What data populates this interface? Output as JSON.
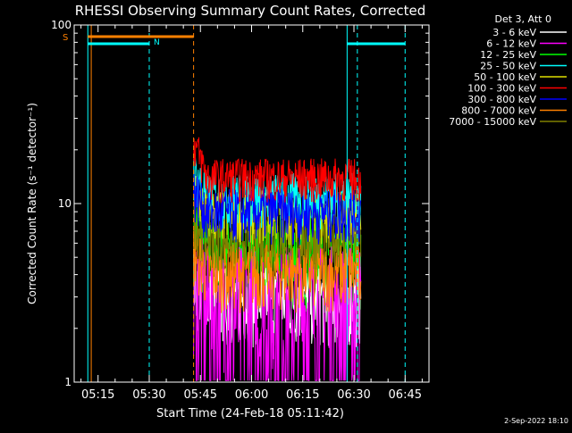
{
  "chart_data": {
    "type": "line",
    "title": "RHESSI Observing Summary Count Rates, Corrected",
    "xlabel": "Start Time (24-Feb-18 05:11:42)",
    "ylabel": "Corrected Count Rate (s⁻¹ detector⁻¹)",
    "y_scale": "log",
    "ylim": [
      1,
      100
    ],
    "xlim": [
      "05:08",
      "06:52"
    ],
    "x_ticks": [
      "05:15",
      "05:30",
      "05:45",
      "06:00",
      "06:15",
      "06:30",
      "06:45"
    ],
    "y_tick_labels": [
      {
        "value": 1,
        "label": "1"
      },
      {
        "value": 10,
        "label": "10"
      },
      {
        "value": 100,
        "label": "100"
      }
    ],
    "data_start": "05:43",
    "data_end": "06:32",
    "legend_title": "Det 3, Att 0",
    "legend_position": "right-outside",
    "series": [
      {
        "name": "3 - 6 keV",
        "color": "#ffffff",
        "level": 3.0,
        "spread": 0.35,
        "peak": 4.0
      },
      {
        "name": "6 - 12 keV",
        "color": "#ff00ff",
        "level": 2.6,
        "spread": 0.9,
        "peak": 3.2
      },
      {
        "name": "12 - 25 keV",
        "color": "#00ff00",
        "level": 5.5,
        "spread": 0.4,
        "peak": 8.0
      },
      {
        "name": "25 - 50 keV",
        "color": "#00ffff",
        "level": 11.0,
        "spread": 0.25,
        "peak": 15.0
      },
      {
        "name": "50 - 100 keV",
        "color": "#e0e000",
        "level": 9.0,
        "spread": 0.25,
        "peak": 12.0
      },
      {
        "name": "100 - 300 keV",
        "color": "#ff0000",
        "level": 14.0,
        "spread": 0.2,
        "peak": 22.0
      },
      {
        "name": "300 - 800 keV",
        "color": "#0000ff",
        "level": 9.0,
        "spread": 0.25,
        "peak": 12.0
      },
      {
        "name": "800 - 7000 keV",
        "color": "#ff8000",
        "level": 4.2,
        "spread": 0.3,
        "peak": 5.5
      },
      {
        "name": "7000 - 15000 keV",
        "color": "#808000",
        "level": 6.5,
        "spread": 0.25,
        "peak": 8.5
      }
    ],
    "annotations": {
      "flag_S": {
        "label": "S",
        "start": "05:12",
        "end": "05:43",
        "color": "#ff8000"
      },
      "flag_N": {
        "label": "N",
        "start": "05:12",
        "end": "05:30",
        "color": "#00ffff"
      },
      "flag_N2": {
        "start": "06:28",
        "end": "06:45",
        "color": "#00ffff"
      },
      "vlines": [
        {
          "time": "05:12",
          "color": "#00ffff",
          "style": "solid"
        },
        {
          "time": "05:13",
          "color": "#ff8000",
          "style": "solid"
        },
        {
          "time": "05:30",
          "color": "#00ffff",
          "style": "dashed"
        },
        {
          "time": "05:43",
          "color": "#ff8000",
          "style": "dashed"
        },
        {
          "time": "06:28",
          "color": "#00ffff",
          "style": "solid"
        },
        {
          "time": "06:31",
          "color": "#00ffff",
          "style": "dashed"
        },
        {
          "time": "06:45",
          "color": "#00ffff",
          "style": "dashed"
        }
      ]
    }
  },
  "footer_date": "2-Sep-2022 18:10"
}
